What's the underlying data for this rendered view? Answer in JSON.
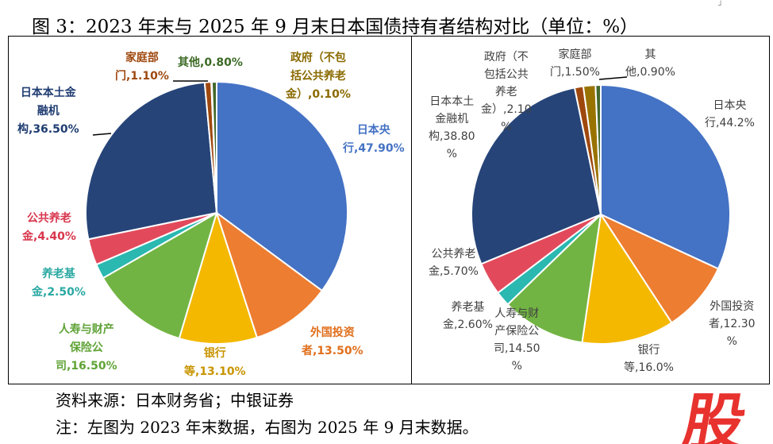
{
  "title": "图 3：2023 年末与 2025 年 9 月末日本国债持有者结构对比（单位：%）",
  "footer": {
    "source": "资料来源：日本财务省；中银证券",
    "note": "注：左图为 2023 年末数据，右图为 2025 年 9 月末数据。"
  },
  "logo_text": "股",
  "chart_data": [
    {
      "type": "pie",
      "title": "2023年末",
      "categories": [
        "日本央行",
        "外国投资者",
        "银行",
        "人寿与财产保险公司",
        "养老基金",
        "公共养老金",
        "日本本土金融机构",
        "家庭部门",
        "政府（不包括公共养老金）",
        "其他"
      ],
      "values": [
        47.9,
        13.5,
        13.1,
        16.5,
        2.5,
        4.4,
        36.5,
        1.1,
        0.1,
        0.8
      ],
      "labels": [
        "日本央\n行,47.90%",
        "外国投资\n者,13.50%",
        "银行\n等,13.10%",
        "人寿与财产\n保险公\n司,16.50%",
        "养老基\n金,2.50%",
        "公共养老\n金,4.40%",
        "日本本土金\n融机\n构,36.50%",
        "家庭部\n门,1.10%",
        "政府（不包\n括公共养老\n金）,0.10%",
        "其他,0.80%"
      ]
    },
    {
      "type": "pie",
      "title": "2025年9月末",
      "categories": [
        "日本央行",
        "外国投资者",
        "银行",
        "人寿与财产保险公司",
        "养老基金",
        "公共养老金",
        "日本本土金融机构",
        "家庭部门",
        "政府（不包括公共养老金）",
        "其他"
      ],
      "values": [
        44.2,
        12.3,
        16.0,
        14.5,
        2.6,
        5.7,
        38.8,
        1.5,
        2.1,
        0.9
      ],
      "labels": [
        "日本央\n行,44.2%",
        "外国投资\n者,12.30\n%",
        "银行\n等,16.0%",
        "人寿与财\n产保险公\n司,14.50\n%",
        "养老基\n金,2.60%",
        "公共养老\n金,5.70%",
        "日本本土\n金融机\n构,38.80\n%",
        "家庭部\n门,1.50%",
        "政府（不\n包括公共\n养老\n金）,2.10\n%",
        "其\n他,0.90%"
      ]
    }
  ],
  "colors": [
    "#4472c4",
    "#ed7d31",
    "#f4b800",
    "#72b443",
    "#2ab8b0",
    "#e24a5c",
    "#264478",
    "#9e480e",
    "#997300",
    "#43682b"
  ],
  "label_colors": [
    "#4472c4",
    "#e06f1c",
    "#c89400",
    "#5fa336",
    "#2aa8a2",
    "#d8364c",
    "#203d72",
    "#9e480e",
    "#8a6a00",
    "#3c6a25"
  ]
}
